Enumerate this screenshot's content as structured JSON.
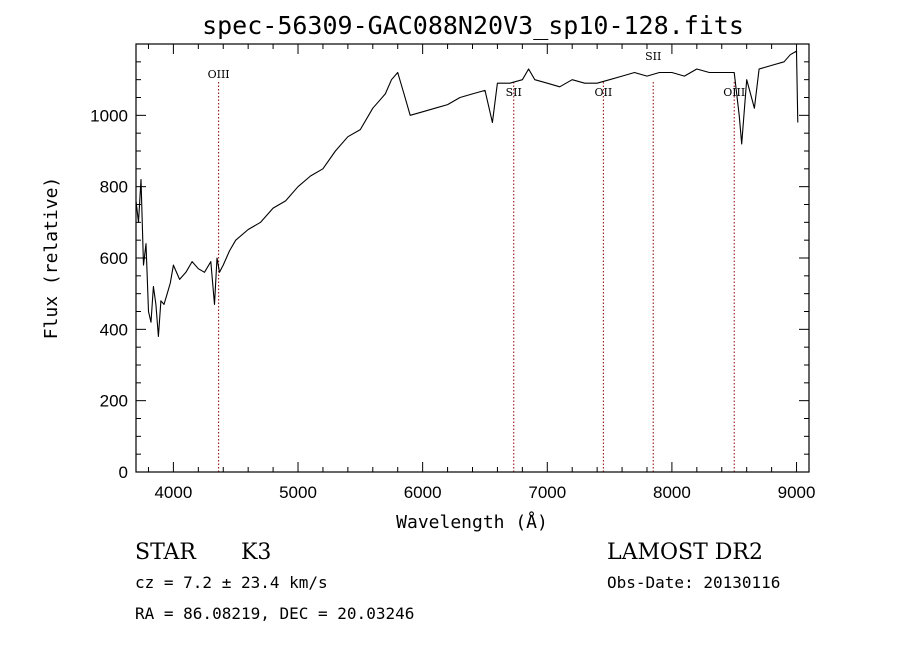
{
  "chart_data": {
    "type": "line",
    "title": "spec-56309-GAC088N20V3_sp10-128.fits",
    "xlabel": "Wavelength (Å)",
    "ylabel": "Flux (relative)",
    "xlim": [
      3700,
      9100
    ],
    "ylim": [
      0,
      1200
    ],
    "xticks": [
      "4000",
      "5000",
      "6000",
      "7000",
      "8000",
      "9000"
    ],
    "yticks": [
      "0",
      "200",
      "400",
      "600",
      "800",
      "1000"
    ],
    "line_color": "#000000",
    "marker_color": "#8b0000",
    "grid": false,
    "series": [
      {
        "x": [
          3700,
          3720,
          3740,
          3760,
          3780,
          3800,
          3820,
          3840,
          3860,
          3880,
          3900,
          3925,
          3950,
          3975,
          4000,
          4050,
          4100,
          4150,
          4200,
          4250,
          4300,
          4330,
          4350,
          4370,
          4400,
          4450,
          4500,
          4600,
          4700,
          4800,
          4900,
          5000,
          5100,
          5200,
          5300,
          5400,
          5500,
          5600,
          5700,
          5750,
          5800,
          5850,
          5900,
          6000,
          6100,
          6200,
          6300,
          6400,
          6500,
          6560,
          6600,
          6700,
          6800,
          6850,
          6900,
          7000,
          7100,
          7200,
          7300,
          7400,
          7500,
          7600,
          7700,
          7800,
          7900,
          8000,
          8100,
          8200,
          8300,
          8400,
          8500,
          8540,
          8560,
          8600,
          8662,
          8700,
          8800,
          8900,
          8950,
          9000,
          9010
        ],
        "y": [
          760,
          700,
          820,
          580,
          640,
          450,
          420,
          520,
          470,
          380,
          480,
          470,
          500,
          530,
          580,
          540,
          560,
          590,
          570,
          560,
          590,
          470,
          600,
          560,
          580,
          620,
          650,
          680,
          700,
          740,
          760,
          800,
          830,
          850,
          900,
          940,
          960,
          1020,
          1060,
          1100,
          1120,
          1060,
          1000,
          1010,
          1020,
          1030,
          1050,
          1060,
          1070,
          980,
          1090,
          1090,
          1100,
          1130,
          1100,
          1090,
          1080,
          1100,
          1090,
          1090,
          1100,
          1110,
          1120,
          1110,
          1120,
          1120,
          1110,
          1130,
          1120,
          1120,
          1120,
          1000,
          920,
          1100,
          1020,
          1130,
          1140,
          1150,
          1170,
          1180,
          980
        ]
      }
    ],
    "line_markers": [
      {
        "label": "OIII",
        "x": 4363
      },
      {
        "label": "SII",
        "x": 6731
      },
      {
        "label": "OII",
        "x": 7450
      },
      {
        "label": "SII",
        "x": 7850
      },
      {
        "label": "OIII",
        "x": 8500
      }
    ]
  },
  "info": {
    "object_class": "STAR",
    "subclass": "K3",
    "survey": "LAMOST DR2",
    "cz": "cz = 7.2 ± 23.4 km/s",
    "obs_date": "Obs-Date: 20130116",
    "coords": "RA =  86.08219, DEC =  20.03246"
  }
}
